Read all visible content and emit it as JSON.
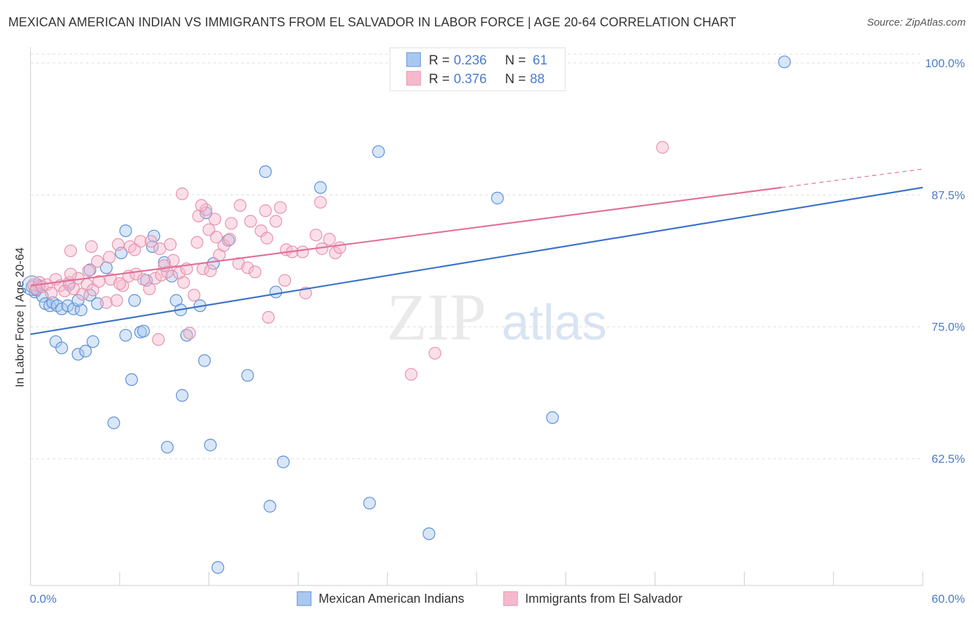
{
  "title": "MEXICAN AMERICAN INDIAN VS IMMIGRANTS FROM EL SALVADOR IN LABOR FORCE | AGE 20-64 CORRELATION CHART",
  "source": "Source: ZipAtlas.com",
  "watermark": {
    "zip": "ZIP",
    "atlas": "atlas"
  },
  "legend_top": {
    "r_label": "R =",
    "n_label": "N =",
    "rows": [
      {
        "r": "0.236",
        "n": "61",
        "color": "#a9c8f0"
      },
      {
        "r": "0.376",
        "n": "88",
        "color": "#f6b9cb"
      }
    ]
  },
  "colors": {
    "blue_fill": "#a9c8f0",
    "blue_stroke": "#5b8fd6",
    "blue_line": "#3a72c8",
    "pink_fill": "#f6b9cb",
    "pink_stroke": "#e592ac",
    "pink_line": "#e36f98",
    "tick_label": "#4a7cc9",
    "grid": "#dddddd"
  },
  "chart_data": {
    "type": "scatter",
    "title": "MEXICAN AMERICAN INDIAN VS IMMIGRANTS FROM EL SALVADOR IN LABOR FORCE | AGE 20-64 CORRELATION CHART",
    "xlabel": "",
    "ylabel": "In Labor Force | Age 20-64",
    "xlim": [
      0,
      60
    ],
    "ylim": [
      50.5,
      101.5
    ],
    "x_tick_labels": [
      "0.0%",
      "60.0%"
    ],
    "y_ticks": [
      100.0,
      87.5,
      75.0,
      62.5
    ],
    "y_tick_labels": [
      "100.0%",
      "87.5%",
      "75.0%",
      "62.5%"
    ],
    "grid": true,
    "legend_position": "bottom",
    "series": [
      {
        "name": "Mexican American Indians",
        "r": 0.236,
        "n": 61,
        "trend": {
          "x": [
            0,
            60
          ],
          "y": [
            74.3,
            88.2
          ]
        },
        "points": [
          [
            0.1,
            78.8
          ],
          [
            0.3,
            78.3
          ],
          [
            0.4,
            78.5
          ],
          [
            0.6,
            78.9
          ],
          [
            0.8,
            77.9
          ],
          [
            1.0,
            77.2
          ],
          [
            1.3,
            77.0
          ],
          [
            1.5,
            77.3
          ],
          [
            1.8,
            77.0
          ],
          [
            2.1,
            76.7
          ],
          [
            2.5,
            77.0
          ],
          [
            2.9,
            76.7
          ],
          [
            3.4,
            76.6
          ],
          [
            4.0,
            78.0
          ],
          [
            3.2,
            77.5
          ],
          [
            2.6,
            79.0
          ],
          [
            4.5,
            77.2
          ],
          [
            5.1,
            80.6
          ],
          [
            4.0,
            80.4
          ],
          [
            6.1,
            82.0
          ],
          [
            6.4,
            84.1
          ],
          [
            7.0,
            77.5
          ],
          [
            7.8,
            79.4
          ],
          [
            8.2,
            82.6
          ],
          [
            8.3,
            83.6
          ],
          [
            9.0,
            81.1
          ],
          [
            9.5,
            79.8
          ],
          [
            9.8,
            77.5
          ],
          [
            10.1,
            76.6
          ],
          [
            11.4,
            77.0
          ],
          [
            11.8,
            85.8
          ],
          [
            12.3,
            81.0
          ],
          [
            13.3,
            83.2
          ],
          [
            15.8,
            89.7
          ],
          [
            16.5,
            78.3
          ],
          [
            19.5,
            88.2
          ],
          [
            23.4,
            91.6
          ],
          [
            31.4,
            87.2
          ],
          [
            1.7,
            73.6
          ],
          [
            2.1,
            73.0
          ],
          [
            3.2,
            72.4
          ],
          [
            3.7,
            72.7
          ],
          [
            4.2,
            73.6
          ],
          [
            6.4,
            74.2
          ],
          [
            7.4,
            74.5
          ],
          [
            7.6,
            74.6
          ],
          [
            10.5,
            74.2
          ],
          [
            6.8,
            70.0
          ],
          [
            11.7,
            71.8
          ],
          [
            14.6,
            70.4
          ],
          [
            10.2,
            68.5
          ],
          [
            5.6,
            65.9
          ],
          [
            9.2,
            63.6
          ],
          [
            12.1,
            63.8
          ],
          [
            17.0,
            62.2
          ],
          [
            35.1,
            66.4
          ],
          [
            16.1,
            58.0
          ],
          [
            22.8,
            58.3
          ],
          [
            26.8,
            55.4
          ],
          [
            12.6,
            52.2
          ],
          [
            50.7,
            100.1
          ]
        ]
      },
      {
        "name": "Immigrants from El Salvador",
        "r": 0.376,
        "n": 88,
        "trend": {
          "x": [
            0,
            50.5
          ],
          "y": [
            78.9,
            88.2
          ]
        },
        "trend_ext": {
          "x": [
            50.5,
            60
          ],
          "y": [
            88.2,
            89.95
          ]
        },
        "points": [
          [
            0.2,
            79.0
          ],
          [
            0.4,
            78.6
          ],
          [
            0.6,
            79.2
          ],
          [
            0.8,
            78.8
          ],
          [
            1.1,
            79.0
          ],
          [
            1.4,
            78.2
          ],
          [
            1.7,
            79.5
          ],
          [
            2.0,
            78.9
          ],
          [
            2.3,
            78.4
          ],
          [
            2.6,
            79.2
          ],
          [
            2.9,
            78.6
          ],
          [
            3.2,
            79.6
          ],
          [
            3.5,
            78.1
          ],
          [
            3.8,
            79.0
          ],
          [
            4.2,
            78.5
          ],
          [
            4.6,
            79.3
          ],
          [
            5.1,
            77.3
          ],
          [
            5.4,
            79.5
          ],
          [
            5.8,
            77.5
          ],
          [
            6.2,
            78.9
          ],
          [
            6.6,
            79.8
          ],
          [
            7.1,
            80.0
          ],
          [
            7.6,
            79.5
          ],
          [
            8.0,
            78.6
          ],
          [
            8.4,
            79.6
          ],
          [
            8.8,
            79.9
          ],
          [
            9.2,
            80.2
          ],
          [
            9.6,
            81.3
          ],
          [
            10.0,
            80.1
          ],
          [
            10.5,
            80.5
          ],
          [
            2.7,
            80.0
          ],
          [
            3.9,
            80.3
          ],
          [
            4.5,
            81.2
          ],
          [
            5.3,
            81.6
          ],
          [
            5.9,
            82.8
          ],
          [
            6.7,
            82.6
          ],
          [
            7.4,
            83.1
          ],
          [
            8.1,
            83.1
          ],
          [
            8.7,
            82.4
          ],
          [
            9.4,
            82.8
          ],
          [
            10.3,
            79.2
          ],
          [
            11.0,
            78.0
          ],
          [
            11.6,
            80.5
          ],
          [
            12.1,
            80.3
          ],
          [
            12.7,
            81.8
          ],
          [
            13.0,
            82.7
          ],
          [
            13.4,
            83.3
          ],
          [
            14.0,
            81.0
          ],
          [
            14.6,
            80.6
          ],
          [
            15.1,
            80.2
          ],
          [
            15.5,
            84.1
          ],
          [
            15.9,
            83.4
          ],
          [
            16.5,
            85.0
          ],
          [
            16.8,
            86.3
          ],
          [
            17.2,
            82.3
          ],
          [
            17.6,
            82.1
          ],
          [
            11.3,
            85.5
          ],
          [
            11.8,
            86.1
          ],
          [
            12.0,
            84.2
          ],
          [
            12.5,
            83.5
          ],
          [
            14.1,
            86.5
          ],
          [
            14.8,
            85.0
          ],
          [
            15.8,
            86.0
          ],
          [
            10.2,
            87.6
          ],
          [
            11.5,
            86.5
          ],
          [
            12.4,
            85.2
          ],
          [
            19.2,
            83.7
          ],
          [
            19.6,
            82.4
          ],
          [
            20.1,
            83.3
          ],
          [
            20.5,
            82.0
          ],
          [
            20.8,
            82.5
          ],
          [
            19.5,
            86.8
          ],
          [
            13.5,
            84.8
          ],
          [
            17.1,
            79.4
          ],
          [
            18.5,
            78.2
          ],
          [
            16.0,
            75.9
          ],
          [
            8.6,
            73.8
          ],
          [
            10.7,
            74.4
          ],
          [
            2.7,
            82.2
          ],
          [
            4.1,
            82.6
          ],
          [
            7.0,
            82.3
          ],
          [
            9.0,
            80.8
          ],
          [
            25.6,
            70.5
          ],
          [
            27.2,
            72.5
          ],
          [
            42.5,
            92.0
          ],
          [
            6.0,
            79.1
          ],
          [
            11.2,
            83.0
          ],
          [
            18.3,
            82.1
          ]
        ]
      }
    ]
  }
}
